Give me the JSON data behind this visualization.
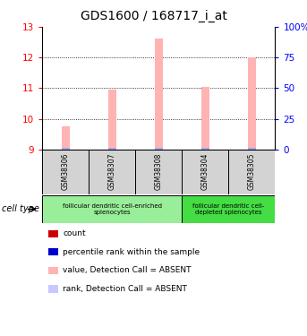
{
  "title": "GDS1600 / 168717_i_at",
  "samples": [
    "GSM38306",
    "GSM38307",
    "GSM38308",
    "GSM38304",
    "GSM38305"
  ],
  "values": [
    9.75,
    10.95,
    12.62,
    11.05,
    12.0
  ],
  "ylim_left": [
    9,
    13
  ],
  "ylim_right": [
    0,
    100
  ],
  "yticks_left": [
    9,
    10,
    11,
    12,
    13
  ],
  "yticks_right": [
    0,
    25,
    50,
    75,
    100
  ],
  "bar_color": "#ffb3b3",
  "rank_color": "#aaaaee",
  "groups": [
    {
      "label": "follicular dendritic cell-enriched\nsplenocytes",
      "samples": [
        0,
        1,
        2
      ],
      "color": "#99ee99"
    },
    {
      "label": "follicular dendritic cell-\ndepleted splenocytes",
      "samples": [
        3,
        4
      ],
      "color": "#44dd44"
    }
  ],
  "legend_items": [
    {
      "color": "#cc0000",
      "label": "count"
    },
    {
      "color": "#0000cc",
      "label": "percentile rank within the sample"
    },
    {
      "color": "#ffb3b3",
      "label": "value, Detection Call = ABSENT"
    },
    {
      "color": "#c8c8ff",
      "label": "rank, Detection Call = ABSENT"
    }
  ],
  "cell_type_label": "cell type",
  "title_fontsize": 10,
  "tick_fontsize": 7.5,
  "sample_fontsize": 5.5,
  "group_fontsize": 5.0,
  "legend_fontsize": 6.5
}
